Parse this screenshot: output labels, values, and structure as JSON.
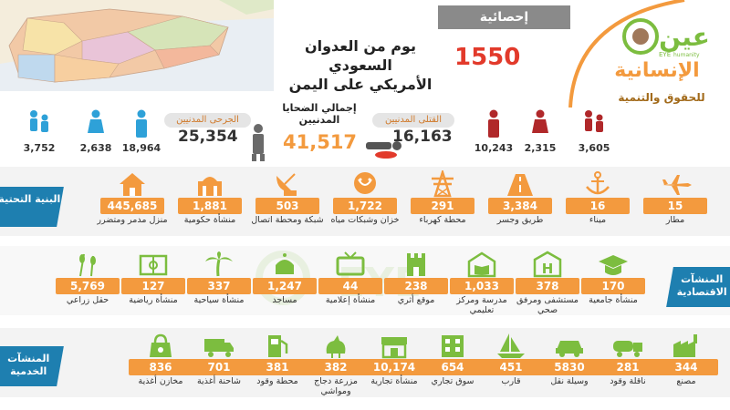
{
  "header": {
    "tag": "إحصائية",
    "headline_line1": "يوم من العدوان السعودي",
    "headline_line2": "الأمريكي على اليمن",
    "days": "1550",
    "logo_text_top": "عين",
    "logo_text_bottom": "الإنسانية",
    "logo_eye": "EYE",
    "logo_humanity": "humanity",
    "slogan": "للحقوق والتنمية"
  },
  "casualties": {
    "killed_label": "القتلى المدنيين",
    "killed_value": "16,163",
    "total_label": "إجمالي الضحايا المدنيين",
    "total_value": "41,517",
    "wounded_label": "الجرحى المدنيين",
    "wounded_value": "25,354",
    "killed_children": "3,605",
    "killed_women": "2,315",
    "killed_men": "10,243",
    "wounded_men": "18,964",
    "wounded_women": "2,638",
    "wounded_children": "3,752"
  },
  "sections": {
    "infrastructure": "البنية التحتية",
    "economic": "المنشآت الاقتصادية",
    "services": "المنشآت الخدمية"
  },
  "row1": [
    {
      "value": "15",
      "label": "مطار",
      "icon": "airplane-icon"
    },
    {
      "value": "16",
      "label": "ميناء",
      "icon": "anchor-icon"
    },
    {
      "value": "3,384",
      "label": "طريق وجسر",
      "icon": "road-icon"
    },
    {
      "value": "291",
      "label": "محطة كهرباء",
      "icon": "power-tower-icon"
    },
    {
      "value": "1,722",
      "label": "خزان وشبكات مياه",
      "icon": "water-tank-icon"
    },
    {
      "value": "503",
      "label": "شبكة ومحطة اتصال",
      "icon": "satellite-dish-icon"
    },
    {
      "value": "1,881",
      "label": "منشأة حكومية",
      "icon": "government-building-icon"
    },
    {
      "value": "445,685",
      "label": "منزل مدمر ومتضرر",
      "icon": "house-icon"
    }
  ],
  "row2": [
    {
      "value": "170",
      "label": "منشأة جامعية",
      "icon": "graduation-cap-icon"
    },
    {
      "value": "378",
      "label": "مستشفى ومرفق صحي",
      "icon": "hospital-icon"
    },
    {
      "value": "1,033",
      "label": "مدرسة ومركز تعليمي",
      "icon": "school-book-icon"
    },
    {
      "value": "238",
      "label": "موقع أثري",
      "icon": "historic-site-icon"
    },
    {
      "value": "44",
      "label": "منشأة إعلامية",
      "icon": "tv-icon"
    },
    {
      "value": "1,247",
      "label": "مساجد",
      "icon": "mosque-icon"
    },
    {
      "value": "337",
      "label": "منشأة سياحية",
      "icon": "palm-tree-icon"
    },
    {
      "value": "127",
      "label": "منشأة رياضية",
      "icon": "stadium-icon"
    },
    {
      "value": "5,769",
      "label": "حقل زراعي",
      "icon": "wheat-icon"
    }
  ],
  "row3": [
    {
      "value": "344",
      "label": "مصنع",
      "icon": "factory-icon"
    },
    {
      "value": "281",
      "label": "ناقلة وقود",
      "icon": "fuel-truck-icon"
    },
    {
      "value": "5830",
      "label": "وسيلة نقل",
      "icon": "car-icon"
    },
    {
      "value": "451",
      "label": "قارب",
      "icon": "boat-icon"
    },
    {
      "value": "654",
      "label": "سوق تجاري",
      "icon": "market-building-icon"
    },
    {
      "value": "10,174",
      "label": "منشأة تجارية",
      "icon": "shop-icon"
    },
    {
      "value": "382",
      "label": "مزرعة دجاج ومواشي",
      "icon": "rooster-icon"
    },
    {
      "value": "381",
      "label": "محطة وقود",
      "icon": "fuel-pump-icon"
    },
    {
      "value": "701",
      "label": "شاحنة أغذية",
      "icon": "truck-icon"
    },
    {
      "value": "836",
      "label": "مخازن أغذية",
      "icon": "food-store-icon"
    }
  ],
  "colors": {
    "orange": "#f39a3e",
    "green": "#7cbd3f",
    "blue": "#1e7fb0",
    "red": "#e23a2b",
    "darkred": "#b0282a",
    "lightblue": "#2ea1d8",
    "gray": "#8a8a8a"
  }
}
